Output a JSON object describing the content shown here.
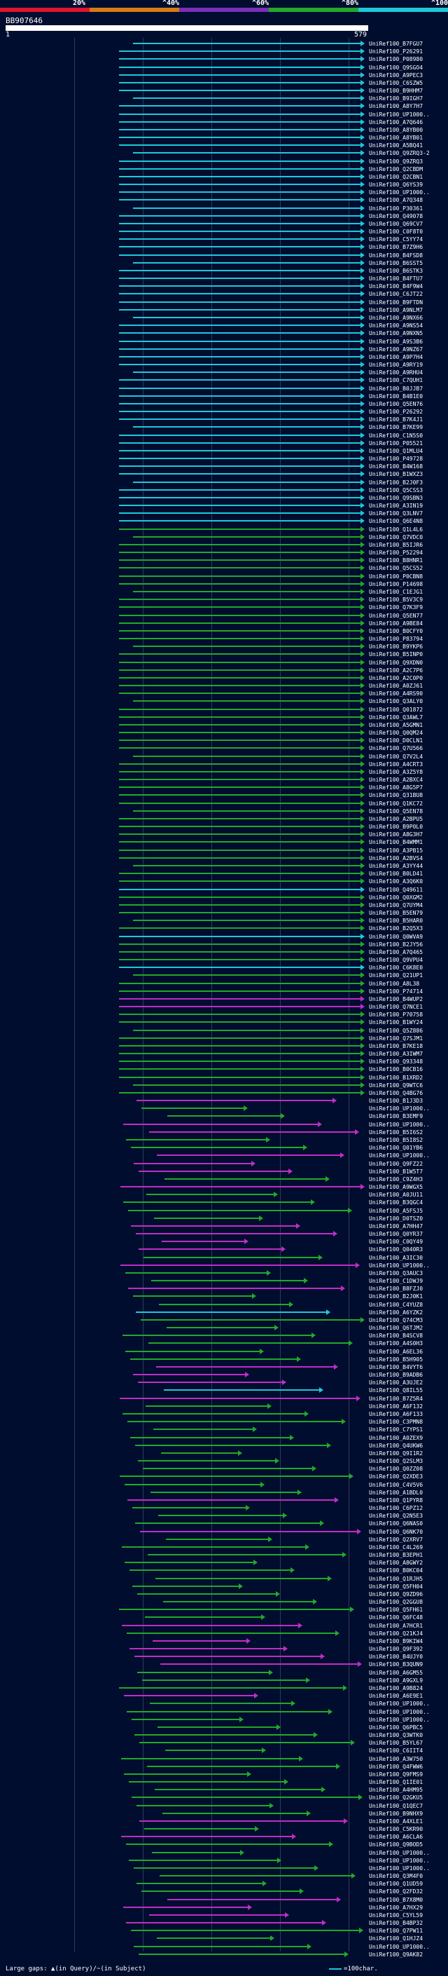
{
  "scale": {
    "labels": [
      "20%",
      "^40%",
      "^60%",
      "^80%",
      "^100%"
    ],
    "colors": [
      "#e0142c",
      "#d87a14",
      "#7a2fb8",
      "#22a82a",
      "#1ec8d8"
    ]
  },
  "query": {
    "id": "BB907646",
    "start": "1",
    "end": "579"
  },
  "hits": [
    {
      "label": "UniRef100_B7FGU7",
      "pct": 100
    },
    {
      "label": "UniRef100_P26291",
      "pct": 100
    },
    {
      "label": "UniRef100_P08980",
      "pct": 100
    },
    {
      "label": "UniRef100_Q9SGO4",
      "pct": 100
    },
    {
      "label": "UniRef100_A9PEC3",
      "pct": 100
    },
    {
      "label": "UniRef100_C6SZW5",
      "pct": 100
    },
    {
      "label": "UniRef100_B9HHM7",
      "pct": 100
    },
    {
      "label": "UniRef100_B9IGH7",
      "pct": 100
    },
    {
      "label": "UniRef100_A8Y7H7",
      "pct": 100
    },
    {
      "label": "UniRef100_UP1000..",
      "pct": 100
    },
    {
      "label": "UniRef100_A7Q646",
      "pct": 100
    },
    {
      "label": "UniRef100_A8YB00",
      "pct": 100
    },
    {
      "label": "UniRef100_A8YB01",
      "pct": 100
    },
    {
      "label": "UniRef100_A5BQ41",
      "pct": 100
    },
    {
      "label": "UniRef100_Q9ZRQ3-2",
      "pct": 100
    },
    {
      "label": "UniRef100_Q9ZRQ3",
      "pct": 100
    },
    {
      "label": "UniRef100_Q2CBDM",
      "pct": 100
    },
    {
      "label": "UniRef100_Q2CBN1",
      "pct": 100
    },
    {
      "label": "UniRef100_Q6YS39",
      "pct": 100
    },
    {
      "label": "UniRef100_UP1000..",
      "pct": 100
    },
    {
      "label": "UniRef100_A7Q348",
      "pct": 100
    },
    {
      "label": "UniRef100_P30361",
      "pct": 100
    },
    {
      "label": "UniRef100_Q49078",
      "pct": 100
    },
    {
      "label": "UniRef100_Q69CV7",
      "pct": 100
    },
    {
      "label": "UniRef100_C0F8T0",
      "pct": 100
    },
    {
      "label": "UniRef100_C5YY74",
      "pct": 100
    },
    {
      "label": "UniRef100_B7Z9H6",
      "pct": 100
    },
    {
      "label": "UniRef100_B4FSD8",
      "pct": 100
    },
    {
      "label": "UniRef100_B6SST5",
      "pct": 100
    },
    {
      "label": "UniRef100_B6STK3",
      "pct": 100
    },
    {
      "label": "UniRef100_B4FTU7",
      "pct": 100
    },
    {
      "label": "UniRef100_B4F9W4",
      "pct": 100
    },
    {
      "label": "UniRef100_C6JT22",
      "pct": 100
    },
    {
      "label": "UniRef100_B9FTDN",
      "pct": 100
    },
    {
      "label": "UniRef100_A9NLM7",
      "pct": 100
    },
    {
      "label": "UniRef100_A9NX66",
      "pct": 100
    },
    {
      "label": "UniRef100_A9NS54",
      "pct": 100
    },
    {
      "label": "UniRef100_A9NXN5",
      "pct": 100
    },
    {
      "label": "UniRef100_A9S3B6",
      "pct": 100
    },
    {
      "label": "UniRef100_A9NZ67",
      "pct": 100
    },
    {
      "label": "UniRef100_A9P7H4",
      "pct": 100
    },
    {
      "label": "UniRef100_A9RY19",
      "pct": 100
    },
    {
      "label": "UniRef100_A9RHU4",
      "pct": 100
    },
    {
      "label": "UniRef100_C7QUH1",
      "pct": 100
    },
    {
      "label": "UniRef100_B0JJB7",
      "pct": 100
    },
    {
      "label": "UniRef100_B4B1E0",
      "pct": 100
    },
    {
      "label": "UniRef100_Q5EN76",
      "pct": 100
    },
    {
      "label": "UniRef100_P26292",
      "pct": 100
    },
    {
      "label": "UniRef100_B7K4J1",
      "pct": 100
    },
    {
      "label": "UniRef100_B7KE99",
      "pct": 100
    },
    {
      "label": "UniRef100_C1N5S0",
      "pct": 100
    },
    {
      "label": "UniRef100_P05521",
      "pct": 100
    },
    {
      "label": "UniRef100_Q1MLU4",
      "pct": 100
    },
    {
      "label": "UniRef100_P49728",
      "pct": 100
    },
    {
      "label": "UniRef100_B4W168",
      "pct": 100
    },
    {
      "label": "UniRef100_B1WXZ3",
      "pct": 100
    },
    {
      "label": "UniRef100_B2J0F3",
      "pct": 100
    },
    {
      "label": "UniRef100_Q5CSS3",
      "pct": 100
    },
    {
      "label": "UniRef100_Q9SBN3",
      "pct": 100
    },
    {
      "label": "UniRef100_A3IN19",
      "pct": 100
    },
    {
      "label": "UniRef100_Q3LNV7",
      "pct": 100
    },
    {
      "label": "UniRef100_Q6E4N8",
      "pct": 100
    },
    {
      "label": "UniRef100_Q1L4L6",
      "pct": 80
    },
    {
      "label": "UniRef100_Q7VDC0",
      "pct": 80
    },
    {
      "label": "UniRef100_B5IJR6",
      "pct": 80
    },
    {
      "label": "UniRef100_P52294",
      "pct": 80
    },
    {
      "label": "UniRef100_B8HNR1",
      "pct": 80
    },
    {
      "label": "UniRef100_Q5CS52",
      "pct": 80
    },
    {
      "label": "UniRef100_P0CBN8",
      "pct": 80
    },
    {
      "label": "UniRef100_P14698",
      "pct": 80
    },
    {
      "label": "UniRef100_C1EJG1",
      "pct": 80
    },
    {
      "label": "UniRef100_B5V3C9",
      "pct": 80
    },
    {
      "label": "UniRef100_Q7K3F9",
      "pct": 80
    },
    {
      "label": "UniRef100_Q5EN77",
      "pct": 80
    },
    {
      "label": "UniRef100_A9BE84",
      "pct": 80
    },
    {
      "label": "UniRef100_B0CFY0",
      "pct": 80
    },
    {
      "label": "UniRef100_P83794",
      "pct": 80
    },
    {
      "label": "UniRef100_B9YKP6",
      "pct": 80
    },
    {
      "label": "UniRef100_B5INP0",
      "pct": 80
    },
    {
      "label": "UniRef100_Q9XDN0",
      "pct": 80
    },
    {
      "label": "UniRef100_A2C7P6",
      "pct": 80
    },
    {
      "label": "UniRef100_A2C0P0",
      "pct": 80
    },
    {
      "label": "UniRef100_A0ZJ61",
      "pct": 80
    },
    {
      "label": "UniRef100_A4RS90",
      "pct": 80
    },
    {
      "label": "UniRef100_Q3ALY0",
      "pct": 80
    },
    {
      "label": "UniRef100_Q01872",
      "pct": 80
    },
    {
      "label": "UniRef100_Q3AWL7",
      "pct": 80
    },
    {
      "label": "UniRef100_A5GMN1",
      "pct": 80
    },
    {
      "label": "UniRef100_Q0QM24",
      "pct": 80
    },
    {
      "label": "UniRef100_D0CLN1",
      "pct": 80
    },
    {
      "label": "UniRef100_Q7U566",
      "pct": 80
    },
    {
      "label": "UniRef100_Q7V2L4",
      "pct": 80
    },
    {
      "label": "UniRef100_A4CRT3",
      "pct": 80
    },
    {
      "label": "UniRef100_A3Z5Y8",
      "pct": 80
    },
    {
      "label": "UniRef100_A2BXC4",
      "pct": 80
    },
    {
      "label": "UniRef100_A8G5P7",
      "pct": 80
    },
    {
      "label": "UniRef100_Q31BU8",
      "pct": 80
    },
    {
      "label": "UniRef100_Q1KC72",
      "pct": 80
    },
    {
      "label": "UniRef100_Q5EN78",
      "pct": 80
    },
    {
      "label": "UniRef100_A2BPU5",
      "pct": 80
    },
    {
      "label": "UniRef100_B9P0L0",
      "pct": 80
    },
    {
      "label": "UniRef100_A8G3H7",
      "pct": 80
    },
    {
      "label": "UniRef100_B4WMM1",
      "pct": 80
    },
    {
      "label": "UniRef100_A3PB15",
      "pct": 80
    },
    {
      "label": "UniRef100_A2BVS4",
      "pct": 80
    },
    {
      "label": "UniRef100_A3YY44",
      "pct": 80
    },
    {
      "label": "UniRef100_B0LD41",
      "pct": 80
    },
    {
      "label": "UniRef100_A3Q6K0",
      "pct": 80
    },
    {
      "label": "UniRef100_Q49611",
      "pct": 100
    },
    {
      "label": "UniRef100_Q0XGM2",
      "pct": 80
    },
    {
      "label": "UniRef100_Q7UYM4",
      "pct": 80
    },
    {
      "label": "UniRef100_B5EN79",
      "pct": 80
    },
    {
      "label": "UniRef100_B5HAR0",
      "pct": 80
    },
    {
      "label": "UniRef100_B2Q5X3",
      "pct": 80
    },
    {
      "label": "UniRef100_Q0WVA9",
      "pct": 100
    },
    {
      "label": "UniRef100_B2JY56",
      "pct": 80
    },
    {
      "label": "UniRef100_A7Q465",
      "pct": 80
    },
    {
      "label": "UniRef100_Q9VPU4",
      "pct": 80
    },
    {
      "label": "UniRef100_C6K8E0",
      "pct": 100
    },
    {
      "label": "UniRef100_Q21UP1",
      "pct": 80
    },
    {
      "label": "UniRef100_A8L38",
      "pct": 80
    },
    {
      "label": "UniRef100_P74714",
      "pct": 80
    },
    {
      "label": "UniRef100_B4WUP2",
      "pct": 60
    },
    {
      "label": "UniRef100_Q7NCE1",
      "pct": 60
    },
    {
      "label": "UniRef100_P70758",
      "pct": 80
    },
    {
      "label": "UniRef100_B1WY24",
      "pct": 80
    },
    {
      "label": "UniRef100_Q5Z886",
      "pct": 80
    },
    {
      "label": "UniRef100_Q7SJM1",
      "pct": 80
    },
    {
      "label": "UniRef100_B7KE18",
      "pct": 80
    },
    {
      "label": "UniRef100_A3IWM7",
      "pct": 80
    },
    {
      "label": "UniRef100_Q93348",
      "pct": 80
    },
    {
      "label": "UniRef100_B0CB16",
      "pct": 80
    },
    {
      "label": "UniRef100_B1XRD2",
      "pct": 80
    },
    {
      "label": "UniRef100_Q9WTC6",
      "pct": 80
    },
    {
      "label": "UniRef100_Q4BG76",
      "pct": 80
    },
    {
      "label": "UniRef100_B1J3D3",
      "pct": 60
    },
    {
      "label": "UniRef100_UP1000..",
      "pct": 80
    },
    {
      "label": "UniRef100_B3EMF9",
      "pct": 80
    },
    {
      "label": "UniRef100_UP1000..",
      "pct": 60
    },
    {
      "label": "UniRef100_B5I6S2",
      "pct": 60
    },
    {
      "label": "UniRef100_B5I8S2",
      "pct": 80
    },
    {
      "label": "UniRef100_Q01YB6",
      "pct": 80
    },
    {
      "label": "UniRef100_UP1000..",
      "pct": 60
    },
    {
      "label": "UniRef100_Q9FZ22",
      "pct": 60
    },
    {
      "label": "UniRef100_B1W5T7",
      "pct": 60
    },
    {
      "label": "UniRef100_C9Z4H3",
      "pct": 80
    },
    {
      "label": "UniRef100_A9WGX5",
      "pct": 60
    },
    {
      "label": "UniRef100_A0JU11",
      "pct": 80
    },
    {
      "label": "UniRef100_B3QGC4",
      "pct": 80
    },
    {
      "label": "UniRef100_A5FSJ5",
      "pct": 80
    },
    {
      "label": "UniRef100_D0TSZ0",
      "pct": 80
    },
    {
      "label": "UniRef100_A7HH47",
      "pct": 60
    },
    {
      "label": "UniRef100_Q0YR37",
      "pct": 60
    },
    {
      "label": "UniRef100_C0QY49",
      "pct": 60
    },
    {
      "label": "UniRef100_Q040R3",
      "pct": 60
    },
    {
      "label": "UniRef100_A3IC30",
      "pct": 80
    },
    {
      "label": "UniRef100_UP1000..",
      "pct": 60
    },
    {
      "label": "UniRef100_Q3AUC3",
      "pct": 80
    },
    {
      "label": "UniRef100_C1DWJ9",
      "pct": 80
    },
    {
      "label": "UniRef100_B8FZJ0",
      "pct": 60
    },
    {
      "label": "UniRef100_B2J0K1",
      "pct": 80
    },
    {
      "label": "UniRef100_C4YUZ8",
      "pct": 80
    },
    {
      "label": "UniRef100_A6YZK2",
      "pct": 100
    },
    {
      "label": "UniRef100_Q74CM3",
      "pct": 80
    },
    {
      "label": "UniRef100_Q6TJM2",
      "pct": 80
    },
    {
      "label": "UniRef100_B4SCV8",
      "pct": 80
    },
    {
      "label": "UniRef100_A4S0H3",
      "pct": 80
    },
    {
      "label": "UniRef100_A6EL36",
      "pct": 80
    },
    {
      "label": "UniRef100_B5H905",
      "pct": 80
    },
    {
      "label": "UniRef100_B4VYT6",
      "pct": 60
    },
    {
      "label": "UniRef100_B9ADB6",
      "pct": 60
    },
    {
      "label": "UniRef100_A3UJE2",
      "pct": 60
    },
    {
      "label": "UniRef100_Q8IL55",
      "pct": 100
    },
    {
      "label": "UniRef100_B7Z5R4",
      "pct": 60
    },
    {
      "label": "UniRef100_A6F132",
      "pct": 80
    },
    {
      "label": "UniRef100_A6F133",
      "pct": 80
    },
    {
      "label": "UniRef100_C3PMN8",
      "pct": 80
    },
    {
      "label": "UniRef100_C7YPS1",
      "pct": 80
    },
    {
      "label": "UniRef100_A0ZEX9",
      "pct": 80
    },
    {
      "label": "UniRef100_Q4UKW6",
      "pct": 80
    },
    {
      "label": "UniRef100_Q9I1R2",
      "pct": 80
    },
    {
      "label": "UniRef100_Q2SLM3",
      "pct": 80
    },
    {
      "label": "UniRef100_Q0ZZ08",
      "pct": 80
    },
    {
      "label": "UniRef100_Q2XDE3",
      "pct": 80
    },
    {
      "label": "UniRef100_C4V5V6",
      "pct": 80
    },
    {
      "label": "UniRef100_A1BDL0",
      "pct": 80
    },
    {
      "label": "UniRef100_Q1PYR8",
      "pct": 60
    },
    {
      "label": "UniRef100_C6PZ12",
      "pct": 80
    },
    {
      "label": "UniRef100_Q2N5E3",
      "pct": 80
    },
    {
      "label": "UniRef100_Q6NAS0",
      "pct": 80
    },
    {
      "label": "UniRef100_Q6NK70",
      "pct": 60
    },
    {
      "label": "UniRef100_Q2XRV7",
      "pct": 80
    },
    {
      "label": "UniRef100_C4L269",
      "pct": 80
    },
    {
      "label": "UniRef100_B3EPH1",
      "pct": 80
    },
    {
      "label": "UniRef100_A8GWY2",
      "pct": 80
    },
    {
      "label": "UniRef100_B0KC04",
      "pct": 80
    },
    {
      "label": "UniRef100_Q1RJH5",
      "pct": 80
    },
    {
      "label": "UniRef100_Q5FH04",
      "pct": 80
    },
    {
      "label": "UniRef100_Q9ZD96",
      "pct": 80
    },
    {
      "label": "UniRef100_Q2GGU8",
      "pct": 80
    },
    {
      "label": "UniRef100_Q5FH61",
      "pct": 80
    },
    {
      "label": "UniRef100_Q6FC48",
      "pct": 80
    },
    {
      "label": "UniRef100_A7HCR1",
      "pct": 60
    },
    {
      "label": "UniRef100_Q21KJ4",
      "pct": 80
    },
    {
      "label": "UniRef100_B9KIW4",
      "pct": 60
    },
    {
      "label": "UniRef100_Q9F392",
      "pct": 60
    },
    {
      "label": "UniRef100_B4UJY0",
      "pct": 60
    },
    {
      "label": "UniRef100_B3QUN9",
      "pct": 60
    },
    {
      "label": "UniRef100_A6GM55",
      "pct": 80
    },
    {
      "label": "UniRef100_A9GXL9",
      "pct": 80
    },
    {
      "label": "UniRef100_A9B824",
      "pct": 80
    },
    {
      "label": "UniRef100_A6E9E1",
      "pct": 60
    },
    {
      "label": "UniRef100_UP1000..",
      "pct": 80
    },
    {
      "label": "UniRef100_UP1000..",
      "pct": 80
    },
    {
      "label": "UniRef100_UP1000..",
      "pct": 80
    },
    {
      "label": "UniRef100_Q6PBC5",
      "pct": 80
    },
    {
      "label": "UniRef100_Q3WTK0",
      "pct": 80
    },
    {
      "label": "UniRef100_B5YL67",
      "pct": 80
    },
    {
      "label": "UniRef100_C6IIT4",
      "pct": 80
    },
    {
      "label": "UniRef100_A3W750",
      "pct": 80
    },
    {
      "label": "UniRef100_Q4FWW6",
      "pct": 80
    },
    {
      "label": "UniRef100_Q9FMS9",
      "pct": 80
    },
    {
      "label": "UniRef100_Q1IE01",
      "pct": 80
    },
    {
      "label": "UniRef100_A4HM95",
      "pct": 80
    },
    {
      "label": "UniRef100_Q2GKU5",
      "pct": 80
    },
    {
      "label": "UniRef100_Q1QEC7",
      "pct": 80
    },
    {
      "label": "UniRef100_B9NHX9",
      "pct": 80
    },
    {
      "label": "UniRef100_A4XLE1",
      "pct": 60
    },
    {
      "label": "UniRef100_C5KR90",
      "pct": 80
    },
    {
      "label": "UniRef100_A6CLA6",
      "pct": 60
    },
    {
      "label": "UniRef100_Q9BOD5",
      "pct": 80
    },
    {
      "label": "UniRef100_UP1000..",
      "pct": 80
    },
    {
      "label": "UniRef100_UP1000..",
      "pct": 80
    },
    {
      "label": "UniRef100_UP1000..",
      "pct": 80
    },
    {
      "label": "UniRef100_Q3M4F0",
      "pct": 80
    },
    {
      "label": "UniRef100_Q1UD59",
      "pct": 80
    },
    {
      "label": "UniRef100_Q2FD32",
      "pct": 80
    },
    {
      "label": "UniRef100_B7X8M0",
      "pct": 60
    },
    {
      "label": "UniRef100_A7HX29",
      "pct": 60
    },
    {
      "label": "UniRef100_C5YL59",
      "pct": 60
    },
    {
      "label": "UniRef100_B4BP32",
      "pct": 60
    },
    {
      "label": "UniRef100_Q7PW11",
      "pct": 80
    },
    {
      "label": "UniRef100_Q1HJZ4",
      "pct": 80
    },
    {
      "label": "UniRef100_UP1000..",
      "pct": 80
    },
    {
      "label": "UniRef100_Q9AK82",
      "pct": 80
    }
  ],
  "legend": {
    "left": "Large gaps: ▲(in Query)/~(in Subject)",
    "right": "=100char."
  }
}
